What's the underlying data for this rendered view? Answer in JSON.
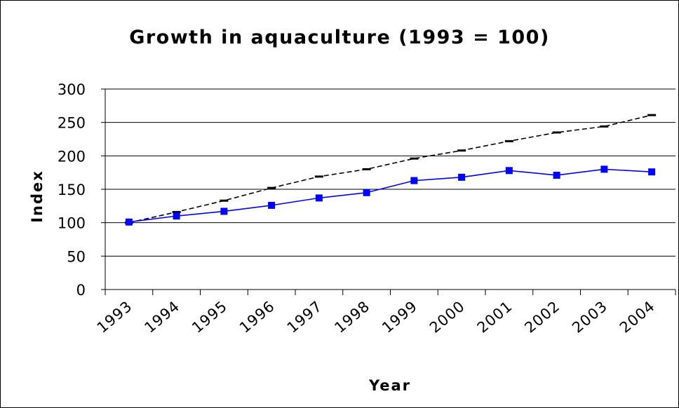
{
  "chart_data": {
    "type": "line",
    "title": "Growth in aquaculture (1993 = 100)",
    "xlabel": "Year",
    "ylabel": "Index",
    "categories": [
      "1993",
      "1994",
      "1995",
      "1996",
      "1997",
      "1998",
      "1999",
      "2000",
      "2001",
      "2002",
      "2003",
      "2004"
    ],
    "ylim": [
      0,
      300
    ],
    "yticks": [
      0,
      50,
      100,
      150,
      200,
      250,
      300
    ],
    "grid": true,
    "series": [
      {
        "values": [
          100,
          116,
          133,
          152,
          169,
          180,
          196,
          208,
          222,
          235,
          244,
          261
        ],
        "color": "#000000",
        "style": "dashed"
      },
      {
        "values": [
          101,
          110,
          117,
          126,
          137,
          145,
          163,
          168,
          178,
          171,
          180,
          176
        ],
        "color": "#0000ff",
        "style": "solid-square-markers"
      }
    ]
  }
}
